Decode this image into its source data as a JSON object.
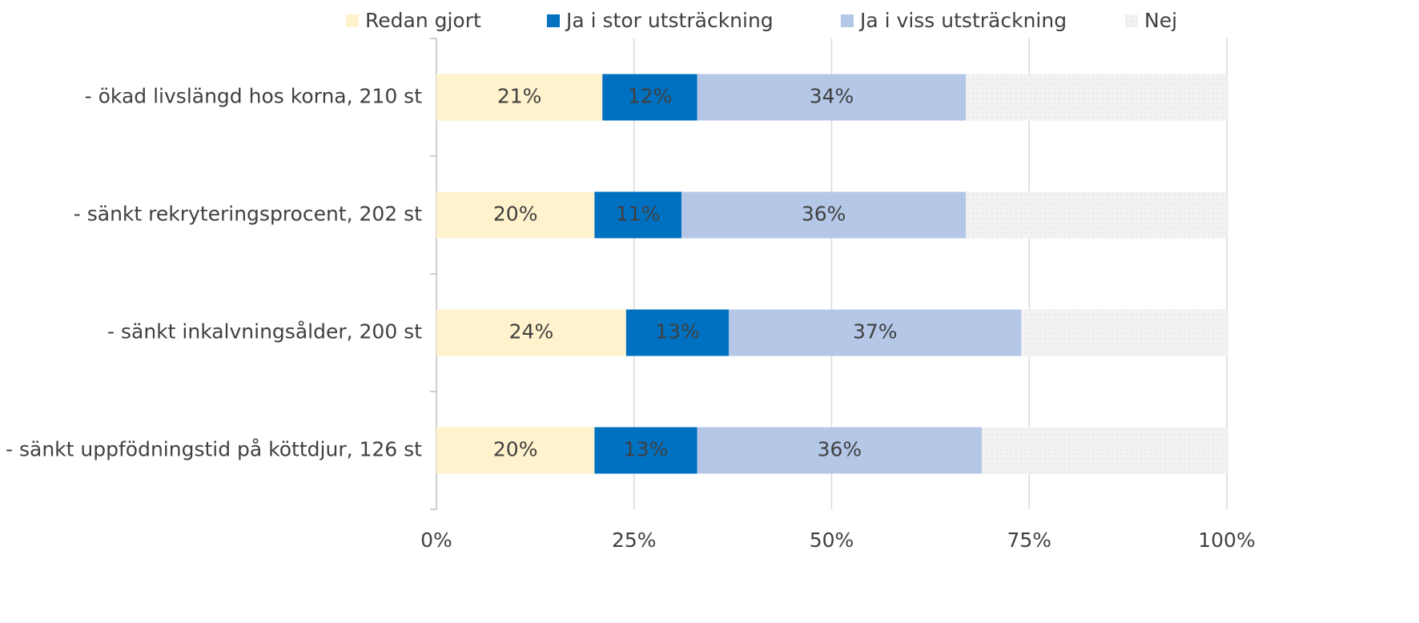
{
  "chart_data": {
    "type": "stacked_bar_horizontal",
    "categories": [
      "- ökad livslängd hos korna, 210 st",
      "- sänkt rekryteringsprocent, 202 st",
      "- sänkt inkalvningsålder, 200 st",
      "- sänkt uppfödningstid på köttdjur, 126 st"
    ],
    "series": [
      {
        "name": "Redan gjort",
        "color": "#fff2cc",
        "values": [
          21,
          20,
          24,
          20
        ],
        "value_labels": [
          "21%",
          "20%",
          "24%",
          "20%"
        ]
      },
      {
        "name": "Ja i stor utsträckning",
        "color": "#0070c0",
        "values": [
          12,
          11,
          13,
          13
        ],
        "value_labels": [
          "12%",
          "11%",
          "13%",
          "13%"
        ]
      },
      {
        "name": "Ja i viss utsträckning",
        "color": "#b4c7e7",
        "values": [
          34,
          36,
          37,
          36
        ],
        "value_labels": [
          "34%",
          "36%",
          "37%",
          "36%"
        ]
      },
      {
        "name": "Nej",
        "color": "#f2f2f2",
        "values": [
          33,
          33,
          26,
          31
        ]
      }
    ],
    "xlim": [
      0,
      100
    ],
    "xticks": [
      {
        "value": 0,
        "label": "0%"
      },
      {
        "value": 25,
        "label": "25%"
      },
      {
        "value": 50,
        "label": "50%"
      },
      {
        "value": 75,
        "label": "75%"
      },
      {
        "value": 100,
        "label": "100%"
      }
    ],
    "grid": true,
    "legend": "top"
  }
}
